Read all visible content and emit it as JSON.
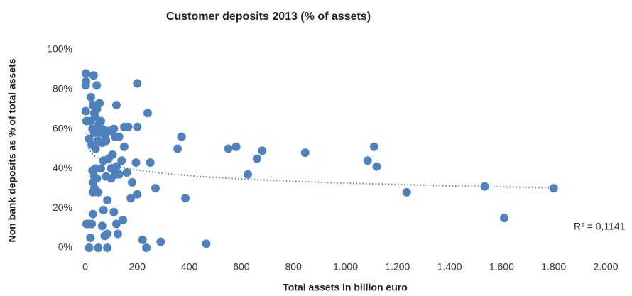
{
  "chart_data": {
    "type": "scatter",
    "title": "Customer deposits 2013 (% of assets)",
    "x_label": "Total assets in billion euro",
    "y_label": "Non bank deposits as % of total assets",
    "annotation": "R² = 0,1141",
    "color": "#4f81bd",
    "trendline": "logarithmic",
    "x": [
      3,
      3,
      2,
      32,
      44,
      2,
      5,
      22,
      30,
      40,
      55,
      35,
      45,
      60,
      38,
      50,
      20,
      28,
      42,
      65,
      80,
      95,
      110,
      130,
      150,
      165,
      200,
      115,
      75,
      55,
      35,
      15,
      48,
      25,
      40,
      65,
      80,
      120,
      200,
      240,
      150,
      195,
      250,
      140,
      120,
      100,
      90,
      105,
      70,
      60,
      40,
      28,
      35,
      45,
      100,
      115,
      130,
      160,
      80,
      30,
      35,
      40,
      50,
      30,
      180,
      200,
      175,
      270,
      385,
      85,
      30,
      70,
      110,
      145,
      5,
      15,
      25,
      65,
      120,
      125,
      75,
      85,
      20,
      220,
      290,
      465,
      15,
      50,
      85,
      235,
      355,
      370,
      550,
      580,
      625,
      660,
      680,
      845,
      1085,
      1110,
      1120,
      1235,
      1535,
      1610,
      1800
    ],
    "values": [
      88,
      84,
      82,
      87,
      82,
      69,
      64,
      76,
      72,
      72,
      73,
      68,
      70,
      64,
      66,
      62,
      64,
      60,
      60,
      60,
      59,
      59,
      60,
      56,
      61,
      61,
      61,
      56,
      57,
      58,
      58,
      55,
      54,
      52,
      50,
      53,
      54,
      72,
      83,
      68,
      51,
      43,
      43,
      44,
      41,
      40,
      45,
      47,
      44,
      40,
      40,
      39,
      36,
      35,
      35,
      37,
      37,
      38,
      36,
      33,
      30,
      29,
      28,
      28,
      33,
      27,
      25,
      30,
      25,
      24,
      17,
      19,
      18,
      14,
      12,
      12,
      12,
      11,
      12,
      7,
      6,
      7,
      5,
      4,
      3,
      2,
      0,
      0,
      0,
      0,
      50,
      56,
      50,
      51,
      37,
      45,
      49,
      48,
      44,
      51,
      41,
      28,
      31,
      15,
      30
    ],
    "xlim": [
      0,
      2000
    ],
    "ylim": [
      0,
      100
    ],
    "xticks": [
      0,
      200,
      400,
      600,
      800,
      {
        "value": 1000,
        "label": "1.000"
      },
      {
        "value": 1200,
        "label": "1.200"
      },
      {
        "value": 1400,
        "label": "1.400"
      },
      {
        "value": 1600,
        "label": "1.600"
      },
      {
        "value": 1800,
        "label": "1.800"
      },
      {
        "value": 2000,
        "label": "2.000"
      }
    ],
    "yticks": [
      {
        "value": 0,
        "label": "0%"
      },
      {
        "value": 20,
        "label": "20%"
      },
      {
        "value": 40,
        "label": "40%"
      },
      {
        "value": 60,
        "label": "60%"
      },
      {
        "value": 80,
        "label": "80%"
      },
      {
        "value": 100,
        "label": "100%"
      }
    ]
  }
}
